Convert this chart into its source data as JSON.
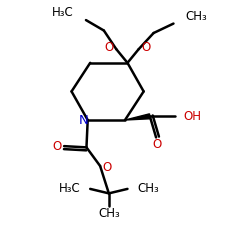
{
  "bg_color": "#ffffff",
  "bond_color": "#000000",
  "N_color": "#0000cc",
  "O_color": "#cc0000",
  "bond_width": 1.8,
  "font_size": 8.5,
  "sub_font_size": 6.5,
  "xlim": [
    0,
    10
  ],
  "ylim": [
    0,
    10
  ]
}
